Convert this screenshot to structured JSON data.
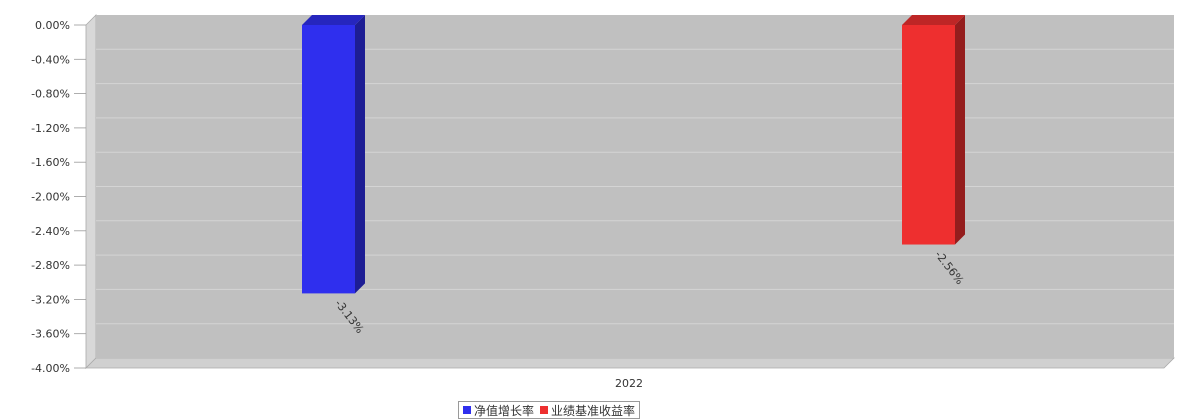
{
  "chart_data": {
    "type": "bar",
    "categories": [
      "2022"
    ],
    "series": [
      {
        "name": "净值增长率",
        "values": [
          -3.13
        ],
        "color": "#2f2fee",
        "label": "-3.13%"
      },
      {
        "name": "业绩基准收益率",
        "values": [
          -2.56
        ],
        "color": "#ee2f2f",
        "label": "-2.56%"
      }
    ],
    "ylim": [
      -4.0,
      0.0
    ],
    "yticks": [
      "0.00%",
      "-0.40%",
      "-0.80%",
      "-1.20%",
      "-1.60%",
      "-2.00%",
      "-2.40%",
      "-2.80%",
      "-3.20%",
      "-3.60%",
      "-4.00%"
    ],
    "grid": true,
    "legend": "bottom",
    "style": "3d"
  }
}
